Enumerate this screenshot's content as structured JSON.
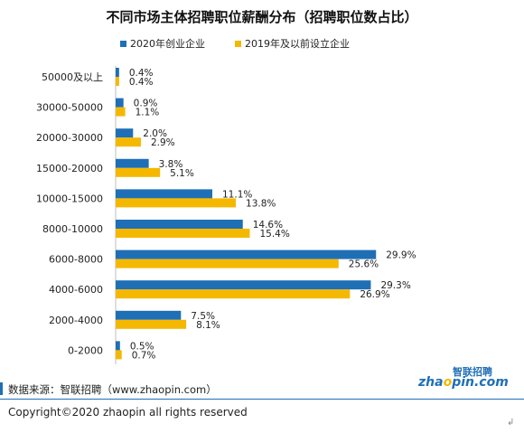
{
  "chart_data": {
    "type": "bar",
    "orientation": "horizontal",
    "title": "不同市场主体招聘职位薪酬分布（招聘职位数占比）",
    "categories": [
      "50000及以上",
      "30000-50000",
      "20000-30000",
      "15000-20000",
      "10000-15000",
      "8000-10000",
      "6000-8000",
      "4000-6000",
      "2000-4000",
      "0-2000"
    ],
    "series": [
      {
        "name": "2020年创业企业",
        "color": "#1f6fb6",
        "values": [
          0.4,
          0.9,
          2.0,
          3.8,
          11.1,
          14.6,
          29.9,
          29.3,
          7.5,
          0.5
        ],
        "labels": [
          "0.4%",
          "0.9%",
          "2.0%",
          "3.8%",
          "11.1%",
          "14.6%",
          "29.9%",
          "29.3%",
          "7.5%",
          "0.5%"
        ]
      },
      {
        "name": "2019年及以前设立企业",
        "color": "#f5b800",
        "values": [
          0.4,
          1.1,
          2.9,
          5.1,
          13.8,
          15.4,
          25.6,
          26.9,
          8.1,
          0.7
        ],
        "labels": [
          "0.4%",
          "1.1%",
          "2.9%",
          "5.1%",
          "13.8%",
          "15.4%",
          "25.6%",
          "26.9%",
          "8.1%",
          "0.7%"
        ]
      }
    ],
    "xlim": [
      0,
      30
    ],
    "grid": false,
    "legend_position": "top"
  },
  "footer": {
    "source": "数据来源：智联招聘（www.zhaopin.com）",
    "copyright": "Copyright©2020 zhaopin all rights reserved",
    "logo_top": "智联招聘",
    "logo_main_a": "zha",
    "logo_main_o": "o",
    "logo_main_b": "pin.com",
    "return_mark": "↲"
  },
  "colors": {
    "accent_blue": "#1f6fb6",
    "accent_yellow": "#f5b800"
  }
}
